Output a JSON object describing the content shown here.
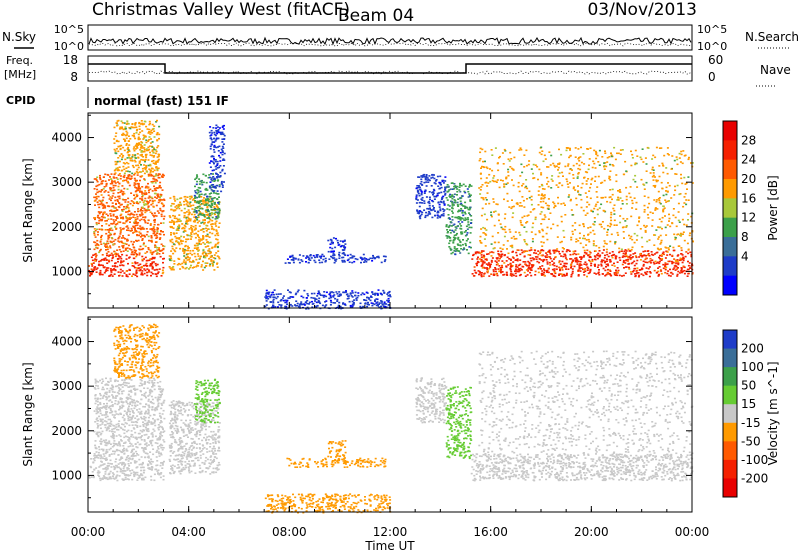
{
  "header": {
    "station": "Christmas Valley West (fitACF)",
    "beam": "Beam 04",
    "date": "03/Nov/2013"
  },
  "panels": {
    "nsky_label": "N.Sky",
    "nsearch_label": "N.Search",
    "nsky_ticks": [
      "10^5",
      "10^0"
    ],
    "nsearch_ticks": [
      "10^5",
      "10^0"
    ],
    "freq_label_1": "Freq.",
    "freq_label_2": "[MHz]",
    "freq_ticks": [
      "18",
      "8"
    ],
    "nave_label": "Nave",
    "nave_ticks": [
      "60",
      "0"
    ],
    "cpid_label": "CPID",
    "cpid_value": "normal (fast) 151 IF"
  },
  "chart_data": [
    {
      "type": "heatmap",
      "title": "Power",
      "xlabel": "Time UT",
      "ylabel": "Slant Range [km]",
      "xlim": [
        0,
        24
      ],
      "ylim": [
        180,
        4550
      ],
      "x_ticks": [
        "00:00",
        "04:00",
        "08:00",
        "12:00",
        "16:00",
        "20:00",
        "00:00"
      ],
      "y_ticks": [
        "1000",
        "2000",
        "3000",
        "4000"
      ],
      "colorbar": {
        "label": "Power [dB]",
        "ticks": [
          "28",
          "24",
          "20",
          "16",
          "12",
          "8",
          "4"
        ],
        "colors": [
          "#e80000",
          "#f52000",
          "#ff5a00",
          "#ff9a00",
          "#a8c83a",
          "#3ca04a",
          "#3a6e98",
          "#1e3cc8",
          "#0000ff"
        ]
      },
      "regions": [
        {
          "t0": 0.0,
          "t1": 3.0,
          "r0": 900,
          "r1": 1400,
          "value": 28
        },
        {
          "t0": 0.2,
          "t1": 3.0,
          "r0": 1400,
          "r1": 3200,
          "value": 24
        },
        {
          "t0": 1.0,
          "t1": 2.8,
          "r0": 3200,
          "r1": 4400,
          "value": 20
        },
        {
          "t0": 3.2,
          "t1": 5.2,
          "r0": 1050,
          "r1": 2700,
          "value": 20
        },
        {
          "t0": 4.2,
          "t1": 5.2,
          "r0": 2200,
          "r1": 3200,
          "value": 12
        },
        {
          "t0": 4.8,
          "t1": 5.4,
          "r0": 2800,
          "r1": 4300,
          "value": 6
        },
        {
          "t0": 7.8,
          "t1": 11.8,
          "r0": 1200,
          "r1": 1400,
          "value": 6
        },
        {
          "t0": 9.5,
          "t1": 10.2,
          "r0": 1400,
          "r1": 1800,
          "value": 6
        },
        {
          "t0": 7.0,
          "t1": 12.0,
          "r0": 180,
          "r1": 600,
          "value": 6
        },
        {
          "t0": 13.0,
          "t1": 14.2,
          "r0": 2200,
          "r1": 3200,
          "value": 6
        },
        {
          "t0": 14.2,
          "t1": 15.2,
          "r0": 1400,
          "r1": 3000,
          "value": 12
        },
        {
          "t0": 15.2,
          "t1": 24.0,
          "r0": 900,
          "r1": 1500,
          "value": 28
        },
        {
          "t0": 15.5,
          "t1": 24.0,
          "r0": 1500,
          "r1": 3800,
          "value": 22
        }
      ]
    },
    {
      "type": "heatmap",
      "title": "Velocity",
      "xlabel": "Time UT",
      "ylabel": "Slant Range [km]",
      "xlim": [
        0,
        24
      ],
      "ylim": [
        180,
        4550
      ],
      "x_ticks": [
        "00:00",
        "04:00",
        "08:00",
        "12:00",
        "16:00",
        "20:00",
        "00:00"
      ],
      "y_ticks": [
        "1000",
        "2000",
        "3000",
        "4000"
      ],
      "colorbar": {
        "label": "Velocity [m s^-1]",
        "ticks": [
          "200",
          "100",
          "50",
          "15",
          "-15",
          "-50",
          "-100",
          "-200"
        ],
        "colors": [
          "#1e3cc8",
          "#3a6e98",
          "#3ca04a",
          "#66cc33",
          "#c8c8c8",
          "#ff9a00",
          "#ff5a00",
          "#f52000",
          "#e80000"
        ]
      },
      "regions": [
        {
          "t0": 0.0,
          "t1": 3.0,
          "r0": 900,
          "r1": 1400,
          "value": 0
        },
        {
          "t0": 0.2,
          "t1": 3.0,
          "r0": 1400,
          "r1": 3200,
          "value": 0
        },
        {
          "t0": 1.0,
          "t1": 2.8,
          "r0": 3200,
          "r1": 4400,
          "value": -30
        },
        {
          "t0": 3.2,
          "t1": 5.2,
          "r0": 1050,
          "r1": 2700,
          "value": 0
        },
        {
          "t0": 4.2,
          "t1": 5.2,
          "r0": 2200,
          "r1": 3200,
          "value": 40
        },
        {
          "t0": 7.8,
          "t1": 11.8,
          "r0": 1200,
          "r1": 1400,
          "value": -40
        },
        {
          "t0": 9.5,
          "t1": 10.2,
          "r0": 1400,
          "r1": 1800,
          "value": -40
        },
        {
          "t0": 7.0,
          "t1": 12.0,
          "r0": 180,
          "r1": 600,
          "value": -30
        },
        {
          "t0": 13.0,
          "t1": 14.2,
          "r0": 2200,
          "r1": 3200,
          "value": 0
        },
        {
          "t0": 14.2,
          "t1": 15.2,
          "r0": 1400,
          "r1": 3000,
          "value": 40
        },
        {
          "t0": 15.2,
          "t1": 24.0,
          "r0": 900,
          "r1": 1500,
          "value": 0
        },
        {
          "t0": 15.5,
          "t1": 24.0,
          "r0": 1500,
          "r1": 3800,
          "value": 0
        }
      ]
    }
  ]
}
